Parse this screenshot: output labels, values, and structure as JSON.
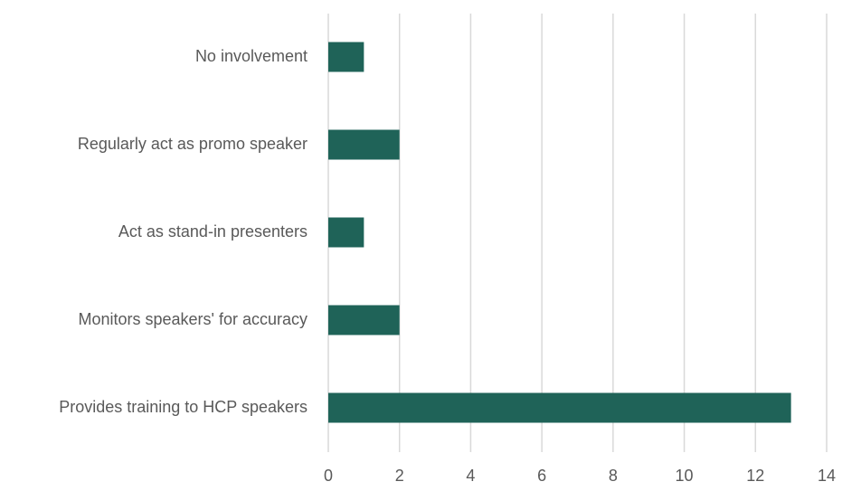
{
  "chart_data": {
    "type": "bar",
    "orientation": "horizontal",
    "categories": [
      "No involvement",
      "Regularly act as promo speaker",
      "Act as stand-in presenters",
      "Monitors speakers' for accuracy",
      "Provides training to HCP speakers"
    ],
    "values": [
      1,
      2,
      1,
      2,
      13
    ],
    "color": "#1f6358",
    "xlim": [
      0,
      14
    ],
    "xticks": [
      0,
      2,
      4,
      6,
      8,
      10,
      12,
      14
    ],
    "grid": true
  }
}
